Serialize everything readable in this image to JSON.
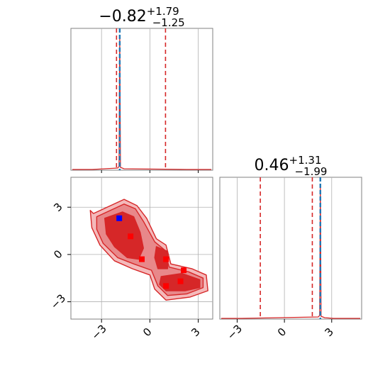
{
  "chart_data": {
    "type": "corner",
    "colors": {
      "contour": "#d62728",
      "truth": "#1f77b4",
      "grid": "#b0b0b0",
      "frame": "#808080",
      "markers": "#ff0000",
      "best_marker": "#0000ff"
    },
    "axes_ticks": [
      -3,
      0,
      3
    ],
    "axes_tick_labels": [
      "−3",
      "0",
      "3"
    ],
    "params": [
      {
        "title": {
          "median": "−0.82",
          "plus": "+1.79",
          "minus": "−1.25"
        },
        "median": -0.82,
        "err_plus": 1.79,
        "err_minus": 1.25,
        "quantile_lines": [
          -2.07,
          0.97
        ],
        "truth": -1.87,
        "xlim": [
          -4.9,
          3.9
        ]
      },
      {
        "title": {
          "median": "0.46",
          "plus": "+1.31",
          "minus": "−1.99"
        },
        "median": 0.46,
        "err_plus": 1.31,
        "err_minus": 1.99,
        "quantile_lines": [
          -1.53,
          1.77
        ],
        "truth": 2.28,
        "xlim": [
          -4.1,
          4.9
        ]
      }
    ],
    "scatter_2d": {
      "x_param": 0,
      "y_param": 1,
      "xlim": [
        -4.9,
        3.9
      ],
      "ylim": [
        -4.1,
        4.9
      ],
      "points_red": [
        [
          -1.2,
          1.15
        ],
        [
          -0.5,
          -0.3
        ],
        [
          1.0,
          -0.3
        ],
        [
          2.1,
          -1.0
        ],
        [
          1.9,
          -1.7
        ],
        [
          1.0,
          -2.0
        ]
      ],
      "points_blue": [
        [
          -1.9,
          2.3
        ]
      ]
    }
  }
}
